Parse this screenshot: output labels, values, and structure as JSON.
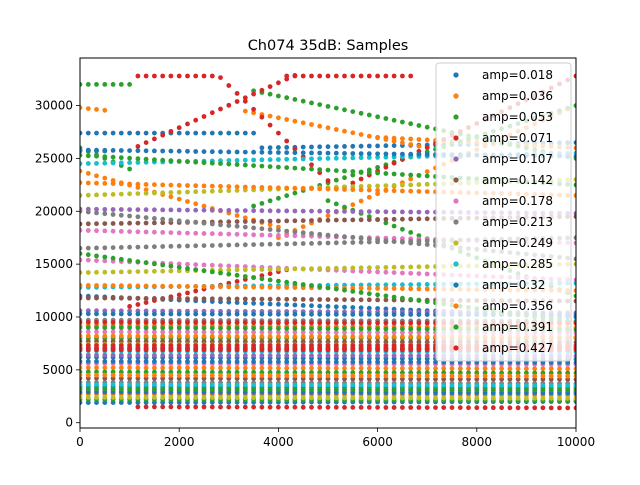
{
  "chart_data": {
    "type": "scatter",
    "title": "Ch074 35dB: Samples",
    "xlabel": "",
    "ylabel": "",
    "xlim": [
      0,
      10000
    ],
    "ylim": [
      -500,
      34500
    ],
    "xticks": [
      0,
      2000,
      4000,
      6000,
      8000,
      10000
    ],
    "yticks": [
      0,
      5000,
      10000,
      15000,
      20000,
      25000,
      30000
    ],
    "xtick_labels": [
      "0",
      "2000",
      "4000",
      "6000",
      "8000",
      "10000"
    ],
    "ytick_labels": [
      "0",
      "5000",
      "10000",
      "15000",
      "20000",
      "25000",
      "30000"
    ],
    "legend_position": "top-right",
    "series": [
      {
        "name": "amp=0.018",
        "color": "#1f77b4",
        "tracks": [
          [
            27400,
            27400,
            0,
            3600
          ],
          [
            25700,
            25700,
            0,
            600
          ],
          [
            12000,
            10000,
            0,
            10000
          ],
          [
            6200,
            6000,
            0,
            10000
          ],
          [
            3400,
            3300,
            0,
            10000
          ],
          [
            1900,
            2000,
            0,
            10000
          ],
          [
            26000,
            26500,
            3600,
            10000
          ]
        ]
      },
      {
        "name": "amp=0.036",
        "color": "#ff7f0e",
        "tracks": [
          [
            29800,
            29500,
            0,
            600
          ],
          [
            23800,
            18500,
            0,
            4000
          ],
          [
            29600,
            26000,
            3200,
            7000
          ],
          [
            17500,
            30000,
            4000,
            10000
          ],
          [
            9200,
            9000,
            0,
            10000
          ],
          [
            5200,
            5100,
            0,
            10000
          ],
          [
            2700,
            2600,
            0,
            10000
          ],
          [
            27000,
            26000,
            6000,
            10000
          ]
        ]
      },
      {
        "name": "amp=0.053",
        "color": "#2ca02c",
        "tracks": [
          [
            32000,
            32000,
            0,
            1000
          ],
          [
            26000,
            24000,
            0,
            1000
          ],
          [
            31500,
            25000,
            3400,
            10000
          ],
          [
            20500,
            30000,
            3500,
            10000
          ],
          [
            8000,
            8000,
            0,
            10000
          ],
          [
            4800,
            4700,
            0,
            10000
          ],
          [
            2200,
            2100,
            0,
            10000
          ],
          [
            21000,
            12000,
            5000,
            10000
          ]
        ]
      },
      {
        "name": "amp=0.071",
        "color": "#d62728",
        "tracks": [
          [
            32800,
            32800,
            1100,
            2800
          ],
          [
            32800,
            22000,
            2800,
            5200
          ],
          [
            26000,
            33000,
            1100,
            4400
          ],
          [
            32800,
            32800,
            4100,
            6700
          ],
          [
            22000,
            32800,
            5200,
            10000
          ],
          [
            1500,
            1400,
            1100,
            10000
          ],
          [
            11000,
            14500,
            1000,
            4200
          ],
          [
            7000,
            7000,
            0,
            10000
          ]
        ]
      },
      {
        "name": "amp=0.107",
        "color": "#9467bd",
        "tracks": [
          [
            20200,
            19800,
            0,
            10000
          ],
          [
            10600,
            10400,
            0,
            10000
          ],
          [
            6400,
            6300,
            0,
            10000
          ],
          [
            3100,
            3000,
            0,
            10000
          ]
        ]
      },
      {
        "name": "amp=0.142",
        "color": "#8c564b",
        "tracks": [
          [
            18800,
            19500,
            0,
            10000
          ],
          [
            11800,
            11500,
            0,
            10000
          ],
          [
            7700,
            7600,
            0,
            10000
          ],
          [
            4200,
            4100,
            0,
            10000
          ]
        ]
      },
      {
        "name": "amp=0.178",
        "color": "#e377c2",
        "tracks": [
          [
            18200,
            17000,
            0,
            10000
          ],
          [
            15400,
            13500,
            0,
            10000
          ],
          [
            8600,
            8500,
            0,
            10000
          ],
          [
            5600,
            5500,
            0,
            10000
          ]
        ]
      },
      {
        "name": "amp=0.213",
        "color": "#7f7f7f",
        "tracks": [
          [
            20000,
            15500,
            0,
            10000
          ],
          [
            16500,
            17500,
            0,
            10000
          ],
          [
            9700,
            9600,
            0,
            10000
          ],
          [
            3800,
            3700,
            0,
            10000
          ]
        ]
      },
      {
        "name": "amp=0.249",
        "color": "#bcbd22",
        "tracks": [
          [
            21500,
            23000,
            0,
            10000
          ],
          [
            14200,
            15000,
            0,
            10000
          ],
          [
            7400,
            7300,
            0,
            10000
          ],
          [
            2400,
            2300,
            0,
            10000
          ]
        ]
      },
      {
        "name": "amp=0.285",
        "color": "#17becf",
        "tracks": [
          [
            24500,
            25500,
            0,
            10000
          ],
          [
            12800,
            13200,
            0,
            10000
          ],
          [
            6800,
            6700,
            0,
            10000
          ],
          [
            3600,
            3500,
            0,
            10000
          ]
        ]
      },
      {
        "name": "amp=0.32",
        "color": "#1f77b4",
        "tracks": [
          [
            25800,
            25200,
            0,
            10000
          ],
          [
            10300,
            10200,
            0,
            10000
          ],
          [
            5800,
            5700,
            0,
            10000
          ],
          [
            2900,
            2800,
            0,
            10000
          ]
        ]
      },
      {
        "name": "amp=0.356",
        "color": "#ff7f0e",
        "tracks": [
          [
            22700,
            21500,
            0,
            10000
          ],
          [
            13000,
            12500,
            0,
            10000
          ],
          [
            8200,
            8100,
            0,
            10000
          ],
          [
            4500,
            4400,
            0,
            10000
          ]
        ]
      },
      {
        "name": "amp=0.391",
        "color": "#2ca02c",
        "tracks": [
          [
            25300,
            22500,
            0,
            10000
          ],
          [
            16000,
            9500,
            0,
            10000
          ],
          [
            9000,
            8800,
            0,
            10000
          ],
          [
            3200,
            3100,
            0,
            10000
          ]
        ]
      },
      {
        "name": "amp=0.427",
        "color": "#d62728",
        "tracks": [
          [
            7100,
            7100,
            0,
            10000
          ],
          [
            6900,
            6900,
            0,
            10000
          ],
          [
            7300,
            7300,
            0,
            10000
          ],
          [
            9500,
            9400,
            0,
            10000
          ]
        ]
      }
    ]
  }
}
